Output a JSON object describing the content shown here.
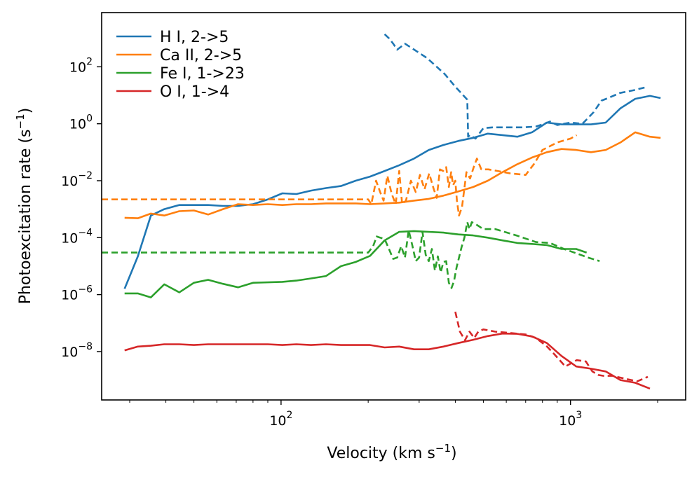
{
  "chart_data": {
    "type": "line",
    "xscale": "log",
    "yscale": "log",
    "xlim": [
      24,
      2500
    ],
    "ylim": [
      2e-10,
      8000
    ],
    "xlabel": {
      "text": "Velocity (km s",
      "sup": "−1",
      "tail": ")"
    },
    "ylabel": {
      "text": "Photoexcitation rate (s",
      "sup": "−1",
      "tail": ")"
    },
    "xticks": [
      {
        "value": 100,
        "base": "10",
        "exp": "2"
      },
      {
        "value": 1000,
        "base": "10",
        "exp": "3"
      }
    ],
    "yticks": [
      {
        "value": 1e-08,
        "base": "10",
        "exp": "−8"
      },
      {
        "value": 1e-06,
        "base": "10",
        "exp": "−6"
      },
      {
        "value": 0.0001,
        "base": "10",
        "exp": "−4"
      },
      {
        "value": 0.01,
        "base": "10",
        "exp": "−2"
      },
      {
        "value": 1,
        "base": "10",
        "exp": "0"
      },
      {
        "value": 100,
        "base": "10",
        "exp": "2"
      }
    ],
    "legend": {
      "location": "upper-left"
    },
    "series": [
      {
        "name": "H I, 2->5",
        "color": "#1f77b4",
        "style": "solid",
        "x": [
          28.8,
          32,
          35.5,
          39.5,
          44.5,
          50,
          56,
          63,
          71,
          80,
          90,
          101,
          113,
          127,
          143,
          161,
          181,
          203,
          228,
          256,
          288,
          324,
          364,
          410,
          461,
          518,
          582,
          655,
          736,
          828,
          931,
          1047,
          1177,
          1323,
          1488,
          1673,
          1881,
          2047
        ],
        "y": [
          1.6e-06,
          2.2e-05,
          0.0006,
          0.001,
          0.0014,
          0.0014,
          0.0014,
          0.0013,
          0.0013,
          0.0015,
          0.0022,
          0.0036,
          0.0034,
          0.0045,
          0.0055,
          0.0065,
          0.01,
          0.014,
          0.022,
          0.035,
          0.06,
          0.12,
          0.18,
          0.25,
          0.32,
          0.45,
          0.4,
          0.35,
          0.5,
          1.1,
          0.95,
          0.95,
          0.95,
          1.1,
          3.5,
          7.5,
          9.5,
          8
        ]
      },
      {
        "name": "",
        "color": "#1f77b4",
        "style": "dashed",
        "x": [
          228,
          236,
          244,
          252,
          268,
          320,
          368,
          400,
          430,
          440,
          443,
          449,
          470,
          500,
          540,
          600,
          690,
          760,
          800,
          850,
          900,
          1000,
          1100,
          1200,
          1280,
          1350,
          1480,
          1650,
          1850
        ],
        "y": [
          1400,
          1000,
          650,
          400,
          650,
          200,
          55,
          20,
          9,
          7,
          0.35,
          0.4,
          0.3,
          0.7,
          0.75,
          0.75,
          0.75,
          0.8,
          0.95,
          1.2,
          0.9,
          1.1,
          1.0,
          2.5,
          6.5,
          8,
          12,
          15,
          20
        ]
      },
      {
        "name": "Ca II, 2->5",
        "color": "#ff7f0e",
        "style": "solid",
        "x": [
          28.8,
          32,
          35.5,
          39.5,
          44.5,
          50,
          56,
          63,
          71,
          80,
          90,
          101,
          113,
          127,
          143,
          161,
          181,
          203,
          228,
          256,
          288,
          324,
          364,
          410,
          461,
          518,
          582,
          655,
          736,
          828,
          931,
          1047,
          1177,
          1323,
          1488,
          1673,
          1881,
          2047
        ],
        "y": [
          0.0005,
          0.00048,
          0.0007,
          0.0006,
          0.00085,
          0.0009,
          0.00065,
          0.001,
          0.0015,
          0.0014,
          0.0015,
          0.0014,
          0.0015,
          0.0015,
          0.0016,
          0.0016,
          0.0016,
          0.0015,
          0.0016,
          0.0017,
          0.002,
          0.0023,
          0.003,
          0.0042,
          0.006,
          0.01,
          0.02,
          0.038,
          0.065,
          0.1,
          0.13,
          0.12,
          0.1,
          0.12,
          0.22,
          0.5,
          0.35,
          0.32
        ]
      },
      {
        "name": "",
        "color": "#ff7f0e",
        "style": "dashed",
        "x": [
          24,
          200,
          205,
          213,
          220,
          226,
          233,
          241,
          249,
          256,
          262,
          270,
          281,
          292,
          302,
          313,
          325,
          336,
          345,
          354,
          363,
          372,
          380,
          387,
          393,
          400,
          405,
          412,
          422,
          437,
          450,
          463,
          475,
          492,
          520,
          560,
          620,
          700,
          750,
          800,
          900,
          1000,
          1050
        ],
        "y": [
          0.0022,
          0.0022,
          0.0015,
          0.01,
          0.004,
          0.002,
          0.015,
          0.0035,
          0.0015,
          0.022,
          0.0015,
          0.002,
          0.01,
          0.004,
          0.016,
          0.005,
          0.018,
          0.0055,
          0.0025,
          0.025,
          0.022,
          0.03,
          0.006,
          0.02,
          0.007,
          0.01,
          0.002,
          0.0006,
          0.0012,
          0.02,
          0.012,
          0.03,
          0.06,
          0.025,
          0.025,
          0.022,
          0.018,
          0.016,
          0.04,
          0.12,
          0.22,
          0.3,
          0.4
        ]
      },
      {
        "name": "Fe I, 1->23",
        "color": "#2ca02c",
        "style": "solid",
        "x": [
          28.8,
          32,
          35.5,
          39.5,
          44.5,
          50,
          56,
          63,
          71,
          80,
          90,
          101,
          113,
          127,
          143,
          161,
          181,
          203,
          228,
          256,
          288,
          324,
          364,
          410,
          461,
          518,
          582,
          655,
          736,
          828,
          931,
          1047,
          1137
        ],
        "y": [
          1.1e-06,
          1.1e-06,
          8e-07,
          2.3e-06,
          1.2e-06,
          2.6e-06,
          3.3e-06,
          2.4e-06,
          1.8e-06,
          2.6e-06,
          2.7e-06,
          2.8e-06,
          3.1e-06,
          3.7e-06,
          4.5e-06,
          1e-05,
          1.4e-05,
          2.3e-05,
          8e-05,
          0.00016,
          0.00017,
          0.00016,
          0.00015,
          0.00013,
          0.00012,
          0.0001,
          8e-05,
          6.5e-05,
          6e-05,
          5.5e-05,
          4e-05,
          4e-05,
          3e-05
        ]
      },
      {
        "name": "",
        "color": "#2ca02c",
        "style": "dashed",
        "x": [
          24,
          200,
          208,
          214,
          220,
          228,
          236,
          244,
          252,
          260,
          268,
          276,
          284,
          292,
          300,
          308,
          316,
          324,
          332,
          340,
          348,
          356,
          364,
          372,
          380,
          388,
          396,
          404,
          412,
          420,
          430,
          440,
          448,
          456,
          470,
          500,
          550,
          650,
          760,
          850,
          950,
          1050,
          1150,
          1260
        ],
        "y": [
          3e-05,
          3e-05,
          5e-05,
          0.00011,
          0.0001,
          9e-05,
          4e-05,
          1.8e-05,
          2e-05,
          5e-05,
          2e-05,
          0.00018,
          5.5e-05,
          1.5e-05,
          2e-05,
          0.00016,
          2.5e-05,
          1.5e-05,
          4e-05,
          7e-06,
          2.2e-05,
          6e-06,
          1.4e-05,
          1.5e-05,
          2.6e-06,
          1.7e-06,
          3e-06,
          9e-06,
          2e-05,
          4.5e-05,
          0.0001,
          0.00035,
          0.0002,
          0.00035,
          0.0003,
          0.0002,
          0.0002,
          0.00012,
          7e-05,
          6.5e-05,
          4e-05,
          2.8e-05,
          2e-05,
          1.5e-05
        ]
      },
      {
        "name": "O I, 1->4",
        "color": "#d62728",
        "style": "solid",
        "x": [
          28.8,
          32,
          35.5,
          39.5,
          44.5,
          50,
          56,
          63,
          71,
          80,
          90,
          101,
          113,
          127,
          143,
          161,
          181,
          203,
          228,
          256,
          288,
          324,
          364,
          410,
          461,
          518,
          582,
          655,
          736,
          828,
          931,
          1047,
          1177,
          1323,
          1488,
          1673,
          1881
        ],
        "y": [
          1.1e-08,
          1.5e-08,
          1.6e-08,
          1.8e-08,
          1.8e-08,
          1.7e-08,
          1.8e-08,
          1.8e-08,
          1.8e-08,
          1.8e-08,
          1.8e-08,
          1.7e-08,
          1.8e-08,
          1.7e-08,
          1.8e-08,
          1.7e-08,
          1.7e-08,
          1.7e-08,
          1.4e-08,
          1.5e-08,
          1.2e-08,
          1.2e-08,
          1.5e-08,
          2e-08,
          2.6e-08,
          3.5e-08,
          4.3e-08,
          4.2e-08,
          3.4e-08,
          2e-08,
          7e-09,
          3e-09,
          2.5e-09,
          2e-09,
          1e-09,
          8e-10,
          5e-10
        ]
      },
      {
        "name": "",
        "color": "#d62728",
        "style": "dashed",
        "x": [
          400,
          415,
          432,
          448,
          465,
          480,
          500,
          550,
          620,
          700,
          760,
          830,
          880,
          960,
          1050,
          1130,
          1190,
          1250,
          1300,
          1400,
          1550,
          1700,
          1850
        ],
        "y": [
          2.5e-07,
          5e-08,
          2.5e-08,
          5e-08,
          3e-08,
          5e-08,
          6e-08,
          5e-08,
          4.5e-08,
          4e-08,
          3e-08,
          1.5e-08,
          8e-09,
          3e-09,
          5e-09,
          4.5e-09,
          2e-09,
          1.5e-09,
          1.4e-09,
          1.4e-09,
          1.1e-09,
          9e-10,
          1.3e-09
        ]
      }
    ]
  }
}
